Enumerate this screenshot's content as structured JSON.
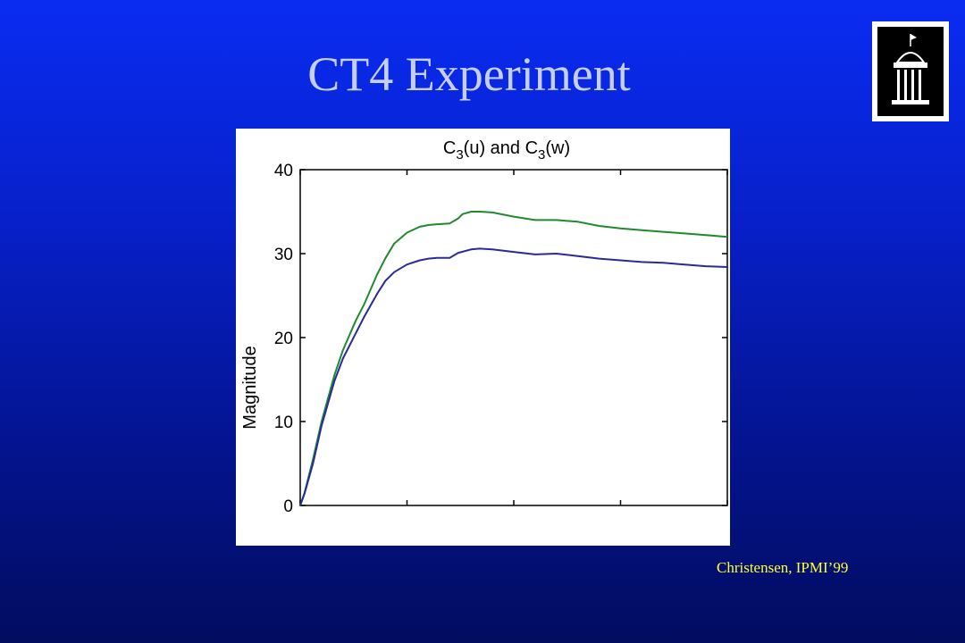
{
  "slide": {
    "title": "CT4 Experiment",
    "credit": "Christensen, IPMI’99",
    "logo_icon": "university-building-icon"
  },
  "colors": {
    "background_top": "#0a2cf2",
    "background_bottom": "#020c5e",
    "title": "#c5cff4",
    "credit": "#ffff33"
  },
  "chart_data": {
    "type": "line",
    "title_parts": {
      "c1": "C",
      "s1": "3",
      "m1": "(u) and C",
      "s2": "3",
      "m2": "(w)"
    },
    "xlabel": "",
    "ylabel": "Magnitude",
    "xlim": [
      0,
      100
    ],
    "ylim": [
      0,
      40
    ],
    "yticks": [
      "0",
      "10",
      "20",
      "30",
      "40"
    ],
    "xticks": [
      0,
      25,
      50,
      75,
      100
    ],
    "grid": false,
    "series": [
      {
        "color": "#1f8a2e",
        "x": [
          0,
          1,
          3,
          5,
          8,
          10,
          13,
          15,
          18,
          20,
          22,
          25,
          28,
          30,
          32,
          35,
          37,
          38,
          40,
          42,
          45,
          50,
          55,
          60,
          65,
          70,
          75,
          80,
          85,
          90,
          95,
          100
        ],
        "y": [
          0,
          1.5,
          5.5,
          10,
          15.5,
          18.5,
          22,
          24,
          27.5,
          29.5,
          31.2,
          32.5,
          33.2,
          33.4,
          33.5,
          33.6,
          34.2,
          34.7,
          35,
          35,
          34.9,
          34.4,
          34,
          34,
          33.8,
          33.3,
          33,
          32.8,
          32.6,
          32.4,
          32.2,
          32
        ]
      },
      {
        "color": "#2a2a9a",
        "x": [
          0,
          1,
          3,
          5,
          8,
          10,
          13,
          15,
          18,
          20,
          22,
          25,
          28,
          30,
          32,
          35,
          37,
          40,
          42,
          45,
          50,
          55,
          60,
          65,
          70,
          75,
          80,
          85,
          90,
          95,
          100
        ],
        "y": [
          0,
          1.4,
          5,
          9.5,
          14.8,
          17.5,
          20.5,
          22.5,
          25.2,
          26.8,
          27.8,
          28.7,
          29.2,
          29.4,
          29.5,
          29.5,
          30.1,
          30.5,
          30.6,
          30.5,
          30.2,
          29.9,
          30,
          29.7,
          29.4,
          29.2,
          29,
          28.9,
          28.7,
          28.5,
          28.4
        ]
      }
    ]
  }
}
